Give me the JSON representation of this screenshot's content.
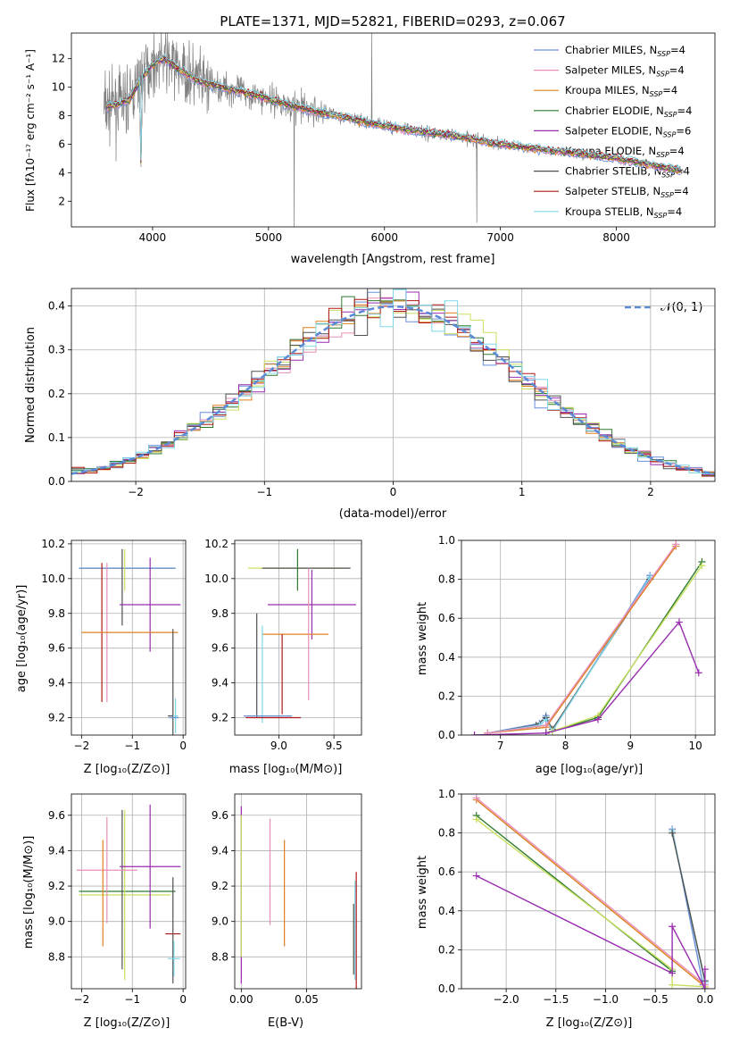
{
  "colors": {
    "chabrier_miles": "#6a8fd9",
    "salpeter_miles": "#e88fb8",
    "kroupa_miles": "#e0801f",
    "chabrier_elodie": "#2e7a2e",
    "salpeter_elodie": "#9a2cb0",
    "kroupa_elodie": "#c8e060",
    "chabrier_stelib": "#505050",
    "salpeter_stelib": "#b01818",
    "kroupa_stelib": "#80d8e8",
    "data": "#7f7f7f",
    "normal": "#5b8ad6",
    "grid": "#b0b0b0"
  },
  "chart_data": [
    {
      "type": "line",
      "title": "PLATE=1371, MJD=52821, FIBERID=0293, z=0.067",
      "xlabel": "wavelength [Angstrom, rest frame]",
      "ylabel": "Flux [fλ10⁻¹⁷ erg cm⁻² s⁻¹ A⁻¹]",
      "xlim": [
        3300,
        8850
      ],
      "ylim": [
        0.2,
        13.8
      ],
      "xticks": [
        "4000",
        "5000",
        "6000",
        "7000",
        "8000"
      ],
      "yticks": [
        "2",
        "4",
        "6",
        "8",
        "10",
        "12"
      ],
      "legend_placement": "top-right",
      "series": [
        {
          "name": "Chabrier MILES, N",
          "sub": "SSP",
          "suffix": "=4"
        },
        {
          "name": "Salpeter MILES, N",
          "sub": "SSP",
          "suffix": "=4"
        },
        {
          "name": "Kroupa MILES, N",
          "sub": "SSP",
          "suffix": "=4"
        },
        {
          "name": "Chabrier ELODIE, N",
          "sub": "SSP",
          "suffix": "=4"
        },
        {
          "name": "Salpeter ELODIE, N",
          "sub": "SSP",
          "suffix": "=6"
        },
        {
          "name": "Kroupa ELODIE, N",
          "sub": "SSP",
          "suffix": "=4"
        },
        {
          "name": "Chabrier STELIB, N",
          "sub": "SSP",
          "suffix": "=4"
        },
        {
          "name": "Salpeter STELIB, N",
          "sub": "SSP",
          "suffix": "=4"
        },
        {
          "name": "Kroupa STELIB, N",
          "sub": "SSP",
          "suffix": "=4"
        }
      ],
      "continuum": {
        "x": [
          3600,
          3700,
          3800,
          3900,
          4000,
          4100,
          4200,
          4400,
          4600,
          4800,
          5000,
          5200,
          5400,
          5600,
          5800,
          6000,
          6200,
          6400,
          6600,
          6800,
          7000,
          7200,
          7400,
          7600,
          7800,
          8000,
          8200,
          8400,
          8600
        ],
        "y": [
          8.6,
          8.8,
          9.1,
          10.6,
          11.6,
          12.0,
          11.4,
          10.4,
          10.0,
          9.6,
          9.2,
          8.7,
          8.3,
          8.0,
          7.6,
          7.3,
          7.0,
          6.8,
          6.6,
          6.3,
          6.0,
          5.8,
          5.6,
          5.4,
          5.2,
          5.0,
          4.7,
          4.4,
          4.1
        ]
      }
    },
    {
      "type": "bar",
      "xlabel": "(data-model)/error",
      "ylabel": "Normed distribution",
      "xlim": [
        -2.5,
        2.5
      ],
      "ylim": [
        0,
        0.44
      ],
      "xticks": [
        "−2",
        "−1",
        "0",
        "1",
        "2"
      ],
      "yticks": [
        "0.0",
        "0.1",
        "0.2",
        "0.3",
        "0.4"
      ],
      "legend": "𝒩(0, 1)",
      "legend_placement": "top-right"
    },
    {
      "type": "scatter",
      "xlabel": "Z [log₁₀(Z/Z⊙)]",
      "ylabel": "age  [log₁₀(age/yr)]",
      "xlim": [
        -2.2,
        0.05
      ],
      "ylim": [
        9.1,
        10.22
      ],
      "xticks": [
        "−2",
        "−1",
        "0"
      ],
      "yticks": [
        "9.2",
        "9.4",
        "9.6",
        "9.8",
        "10.0",
        "10.2"
      ]
    },
    {
      "type": "scatter",
      "xlabel": "mass [log₁₀(M/M⊙)]",
      "xlim": [
        8.6,
        9.75
      ],
      "ylim": [
        9.1,
        10.22
      ],
      "xticks": [
        "9.0",
        "9.5"
      ],
      "yticks": [
        "9.2",
        "9.4",
        "9.6",
        "9.8",
        "10.0",
        "10.2"
      ]
    },
    {
      "type": "line",
      "xlabel": "age  [log₁₀(age/yr)]",
      "ylabel": "mass weight",
      "xlim": [
        6.4,
        10.3
      ],
      "ylim": [
        0,
        1.0
      ],
      "xticks": [
        "7",
        "8",
        "9",
        "10"
      ],
      "yticks": [
        "0.0",
        "0.2",
        "0.4",
        "0.6",
        "0.8",
        "1.0"
      ]
    },
    {
      "type": "scatter",
      "xlabel": "Z [log₁₀(Z/Z⊙)]",
      "ylabel": "mass [log₁₀(M/M⊙)]",
      "xlim": [
        -2.2,
        0.05
      ],
      "ylim": [
        8.62,
        9.72
      ],
      "xticks": [
        "−2",
        "−1",
        "0"
      ],
      "yticks": [
        "8.8",
        "9.0",
        "9.2",
        "9.4",
        "9.6"
      ]
    },
    {
      "type": "scatter",
      "xlabel": "E(B-V)",
      "xlim": [
        -0.005,
        0.092
      ],
      "ylim": [
        8.62,
        9.72
      ],
      "xticks": [
        "0.00",
        "0.05"
      ],
      "yticks": [
        "8.8",
        "9.0",
        "9.2",
        "9.4",
        "9.6"
      ]
    },
    {
      "type": "line",
      "xlabel": "Z [log₁₀(Z/Z⊙)]",
      "ylabel": "mass weight",
      "xlim": [
        -2.45,
        0.1
      ],
      "ylim": [
        0,
        1.0
      ],
      "xticks": [
        "−2.0",
        "−1.5",
        "−1.0",
        "−0.5",
        "0.0"
      ],
      "yticks": [
        "0.0",
        "0.2",
        "0.4",
        "0.6",
        "0.8",
        "1.0"
      ]
    }
  ]
}
